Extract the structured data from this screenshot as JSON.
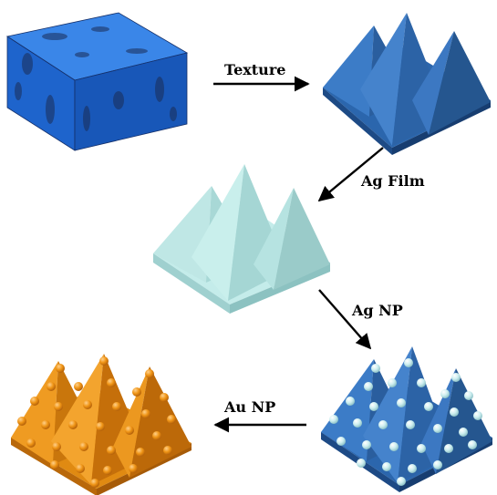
{
  "diagram": {
    "steps": [
      {
        "id": "texture",
        "label": "Texture"
      },
      {
        "id": "ag-film",
        "label": "Ag Film"
      },
      {
        "id": "ag-np",
        "label": "Ag NP"
      },
      {
        "id": "au-np",
        "label": "Au NP"
      }
    ],
    "colors": {
      "substrate": "#1f6fd6",
      "textured": "#2f6db3",
      "ag_film": "#b5e3e2",
      "ag_particle": "#cdeef0",
      "au": "#e4860c",
      "arrow": "#000000"
    }
  }
}
